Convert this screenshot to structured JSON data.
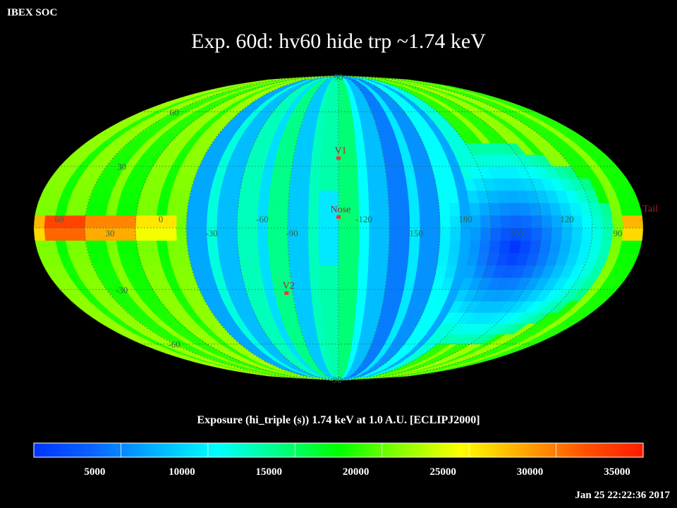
{
  "header": {
    "org": "IBEX SOC",
    "title": "Exp.   60d: hv60 hide trp ~1.74 keV",
    "timestamp": "Jan 25 22:22:36 2017"
  },
  "chart_data": {
    "type": "heatmap",
    "projection": "mollweide",
    "grid": true,
    "colorbar": {
      "title": "Exposure (hi_triple (s))  1.74 keV at 1.0 A.U. [ECLIPJ2000]",
      "range": [
        1500,
        36500
      ],
      "ticks": [
        5000,
        10000,
        15000,
        20000,
        25000,
        30000,
        35000
      ],
      "tick_labels": [
        "5000",
        "10000",
        "15000",
        "20000",
        "25000",
        "30000",
        "35000"
      ],
      "colors": [
        "#0033ff",
        "#0a66ff",
        "#00b3ff",
        "#00ffff",
        "#00ff88",
        "#00ff00",
        "#88ff00",
        "#ffff00",
        "#ffaa00",
        "#ff5500",
        "#ff1a00"
      ]
    },
    "lat_labels": [
      {
        "text": "90",
        "lon": 255,
        "lat": 88
      },
      {
        "text": "60",
        "lon": 45,
        "lat": 60
      },
      {
        "text": "30",
        "lon": 35,
        "lat": 30
      },
      {
        "text": "-30",
        "lon": 35,
        "lat": -30
      },
      {
        "text": "-60",
        "lon": 45,
        "lat": -60
      },
      {
        "text": "-90",
        "lon": 270,
        "lat": -88
      }
    ],
    "lon_labels": [
      "60",
      "30",
      "0",
      "-30",
      "-60",
      "-90",
      "-120",
      "-150",
      "180",
      "150",
      "120",
      "90"
    ],
    "markers": [
      {
        "label": "V1",
        "lon": 255,
        "lat": 34
      },
      {
        "label": "Nose",
        "lon": 255,
        "lat": 5
      },
      {
        "label": "V2",
        "lon": 289,
        "lat": -32
      },
      {
        "label": "Tail",
        "lon": 75,
        "lat": 5
      }
    ],
    "marker_color": "#ff3333",
    "exposure_summary": {
      "nose_hemisphere_stripes": [
        12000,
        16000,
        11000,
        14000,
        9500,
        15500,
        10500,
        14000,
        9000,
        13000,
        8000,
        12000,
        7000,
        11000,
        6000,
        9000
      ],
      "ecliptic_band_values": [
        27000,
        31000,
        34000,
        29000,
        33000,
        36000,
        31000,
        27000,
        30000,
        28000
      ],
      "minimum_near_lon": 150,
      "minimum_value": 1500
    }
  }
}
